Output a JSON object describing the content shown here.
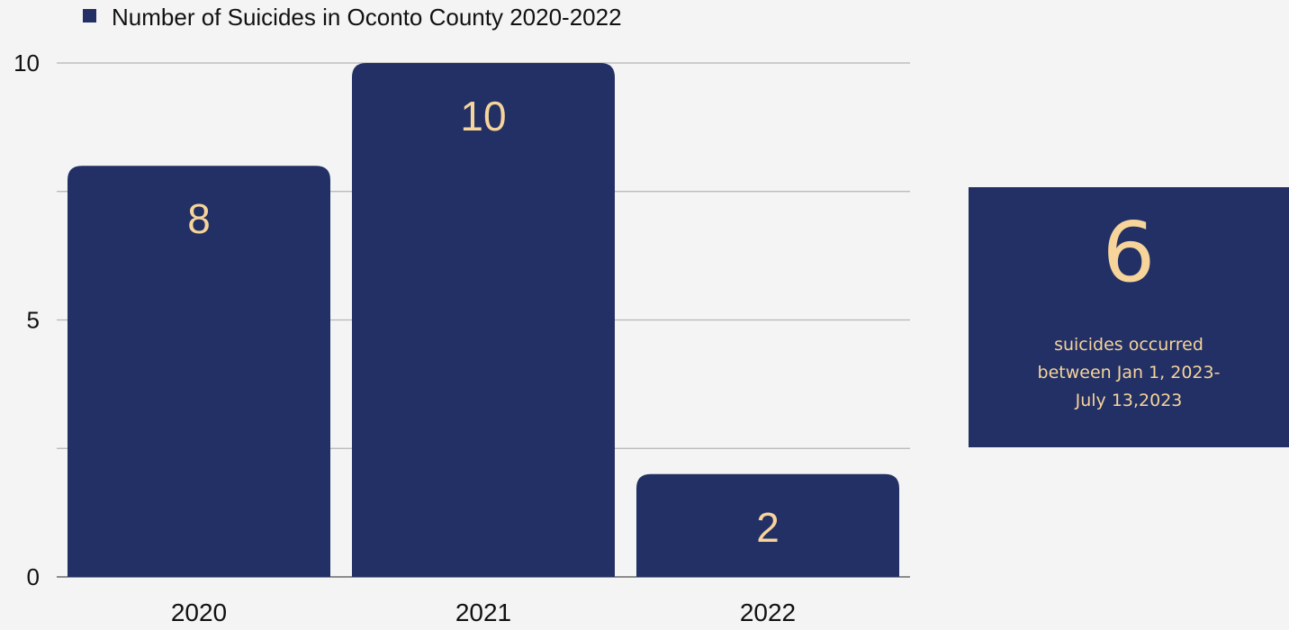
{
  "chart_data": {
    "type": "bar",
    "categories": [
      "2020",
      "2021",
      "2022"
    ],
    "series": [
      {
        "name": "Number of Suicides in Oconto County 2020-2022",
        "values": [
          8,
          10,
          2
        ]
      }
    ],
    "data_labels": [
      "8",
      "10",
      "2"
    ],
    "y_ticks": [
      "0",
      "5",
      "10"
    ],
    "ylim": [
      0,
      10
    ],
    "grid": true,
    "legend": "top-left",
    "title": "",
    "xlabel": "",
    "ylabel": ""
  },
  "callout": {
    "number": "6",
    "lines": [
      "suicides occurred",
      "between Jan 1, 2023-",
      "July 13,2023"
    ]
  },
  "colors": {
    "bar": "#223065",
    "data_label": "#f6d49a",
    "background": "#f4f4f4",
    "grid": "#b5b5b5",
    "text": "#111111"
  }
}
